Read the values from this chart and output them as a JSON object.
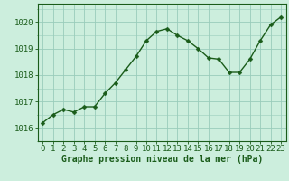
{
  "x": [
    0,
    1,
    2,
    3,
    4,
    5,
    6,
    7,
    8,
    9,
    10,
    11,
    12,
    13,
    14,
    15,
    16,
    17,
    18,
    19,
    20,
    21,
    22,
    23
  ],
  "y": [
    1016.2,
    1016.5,
    1016.7,
    1016.6,
    1016.8,
    1016.8,
    1017.3,
    1017.7,
    1018.2,
    1018.7,
    1019.3,
    1019.65,
    1019.75,
    1019.5,
    1019.3,
    1019.0,
    1018.65,
    1018.6,
    1018.1,
    1018.1,
    1018.6,
    1019.3,
    1019.9,
    1020.2
  ],
  "line_color": "#1a5c1a",
  "marker": "D",
  "marker_size": 2.5,
  "background_color": "#cceedd",
  "grid_color": "#99ccbb",
  "ylabel_ticks": [
    1016,
    1017,
    1018,
    1019,
    1020
  ],
  "xlabel": "Graphe pression niveau de la mer (hPa)",
  "xlim": [
    -0.5,
    23.5
  ],
  "ylim": [
    1015.5,
    1020.7
  ],
  "xlabel_fontsize": 7,
  "tick_fontsize": 6.5,
  "line_width": 1.0
}
